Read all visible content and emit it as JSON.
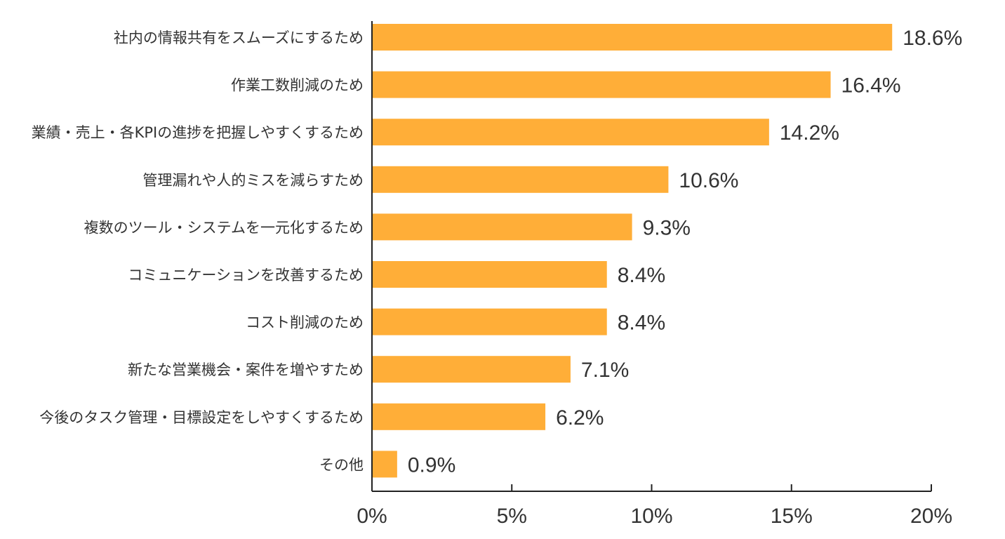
{
  "chart_data": {
    "type": "bar",
    "orientation": "horizontal",
    "categories": [
      "社内の情報共有をスムーズにするため",
      "作業工数削減のため",
      "業績・売上・各KPIの進捗を把握しやすくするため",
      "管理漏れや人的ミスを減らすため",
      "複数のツール・システムを一元化するため",
      "コミュニケーションを改善するため",
      "コスト削減のため",
      "新たな営業機会・案件を増やすため",
      "今後のタスク管理・目標設定をしやすくするため",
      "その他"
    ],
    "values": [
      18.6,
      16.4,
      14.2,
      10.6,
      9.3,
      8.4,
      8.4,
      7.1,
      6.2,
      0.9
    ],
    "value_labels": [
      "18.6%",
      "16.4%",
      "14.2%",
      "10.6%",
      "9.3%",
      "8.4%",
      "8.4%",
      "7.1%",
      "6.2%",
      "0.9%"
    ],
    "xlim": [
      0,
      20
    ],
    "xticks": [
      0,
      5,
      10,
      15,
      20
    ],
    "xtick_labels": [
      "0%",
      "5%",
      "10%",
      "15%",
      "20%"
    ],
    "grid": false,
    "legend": "none",
    "bar_color": "#FFAE38",
    "axis_color": "#222222"
  }
}
